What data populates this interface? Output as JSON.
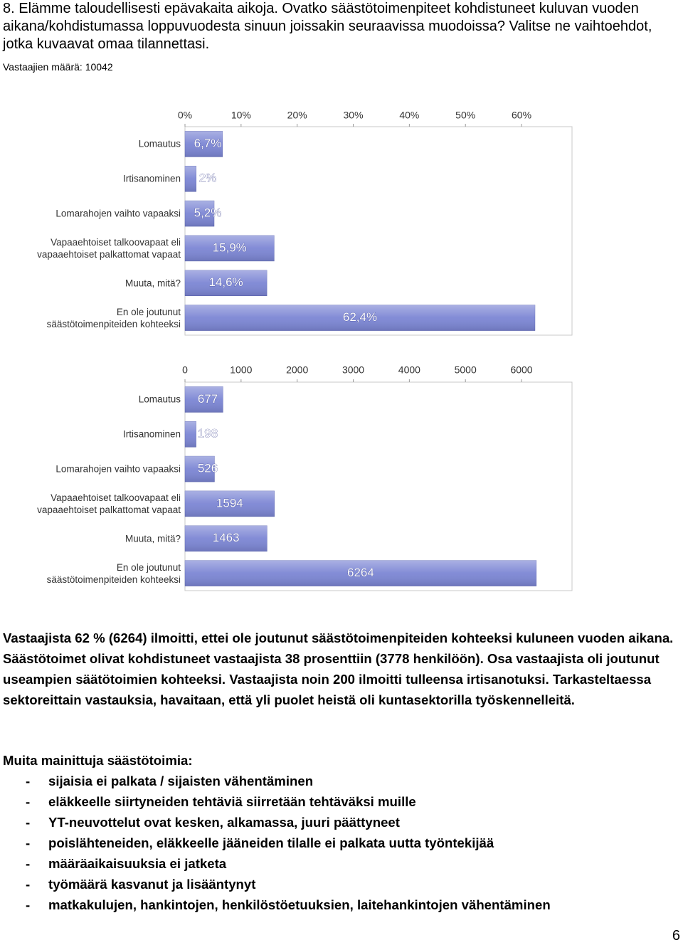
{
  "question": "8. Elämme taloudellisesti epävakaita aikoja. Ovatko säästötoimenpiteet kohdistuneet kuluvan vuoden aikana/kohdistumassa loppuvuodesta sinuun joissakin seuraavissa muodoissa? Valitse ne vaihtoehdot, jotka kuvaavat omaa tilannettasi.",
  "respondents": "Vastaajien määrä: 10042",
  "chart_data": [
    {
      "type": "bar",
      "orientation": "horizontal",
      "categories": [
        "Lomautus",
        "Irtisanominen",
        "Lomarahojen vaihto vapaaksi",
        "Vapaaehtoiset talkoovapaat eli\nvapaaehtoiset palkattomat vapaat",
        "Muuta, mitä?",
        "En ole joutunut\nsäästötoimenpiteiden kohteeksi"
      ],
      "values": [
        6.7,
        2,
        5.2,
        15.9,
        14.6,
        62.4
      ],
      "value_labels": [
        "6,7%",
        "2%",
        "5,2%",
        "15,9%",
        "14,6%",
        "62,4%"
      ],
      "color": "#7c86d4",
      "xlim": [
        0,
        69
      ],
      "xticks": [
        {
          "value": 0,
          "label": "0%"
        },
        {
          "value": 10,
          "label": "10%"
        },
        {
          "value": 20,
          "label": "20%"
        },
        {
          "value": 30,
          "label": "30%"
        },
        {
          "value": 40,
          "label": "40%"
        },
        {
          "value": 50,
          "label": "50%"
        },
        {
          "value": 60,
          "label": "60%"
        }
      ],
      "grid": false
    },
    {
      "type": "bar",
      "orientation": "horizontal",
      "categories": [
        "Lomautus",
        "Irtisanominen",
        "Lomarahojen vaihto vapaaksi",
        "Vapaaehtoiset talkoovapaat eli\nvapaaehtoiset palkattomat vapaat",
        "Muuta, mitä?",
        "En ole joutunut\nsäästötoimenpiteiden kohteeksi"
      ],
      "values": [
        677,
        198,
        526,
        1594,
        1463,
        6264
      ],
      "color": "#7c86d4",
      "xlim": [
        0,
        6900
      ],
      "xticks": [
        0,
        1000,
        2000,
        3000,
        4000,
        5000,
        6000
      ],
      "grid": false
    }
  ],
  "summary": "Vastaajista 62 % (6264) ilmoitti, ettei ole joutunut säästötoimenpiteiden kohteeksi kuluneen vuoden aikana. Säästötoimet olivat kohdistuneet vastaajista 38 prosenttiin (3778 henkilöön). Osa vastaajista oli joutunut useampien säätötoimien kohteeksi. Vastaajista noin 200 ilmoitti tulleensa irtisanotuksi. Tarkasteltaessa sektoreittain vastauksia, havaitaan, että yli puolet heistä oli kuntasektorilla työskennelleitä.",
  "list_title": "Muita mainittuja säästötoimia:",
  "list_items": [
    "sijaisia ei palkata / sijaisten vähentäminen",
    "eläkkeelle siirtyneiden tehtäviä siirretään tehtäväksi muille",
    "YT-neuvottelut ovat kesken, alkamassa, juuri päättyneet",
    "poislähteneiden, eläkkeelle jääneiden tilalle ei palkata uutta työntekijää",
    "määräaikaisuuksia ei jatketa",
    "työmäärä kasvanut ja lisääntynyt",
    "matkakulujen, hankintojen, henkilöstöetuuksien, laitehankintojen vähentäminen"
  ],
  "page_number": "6"
}
